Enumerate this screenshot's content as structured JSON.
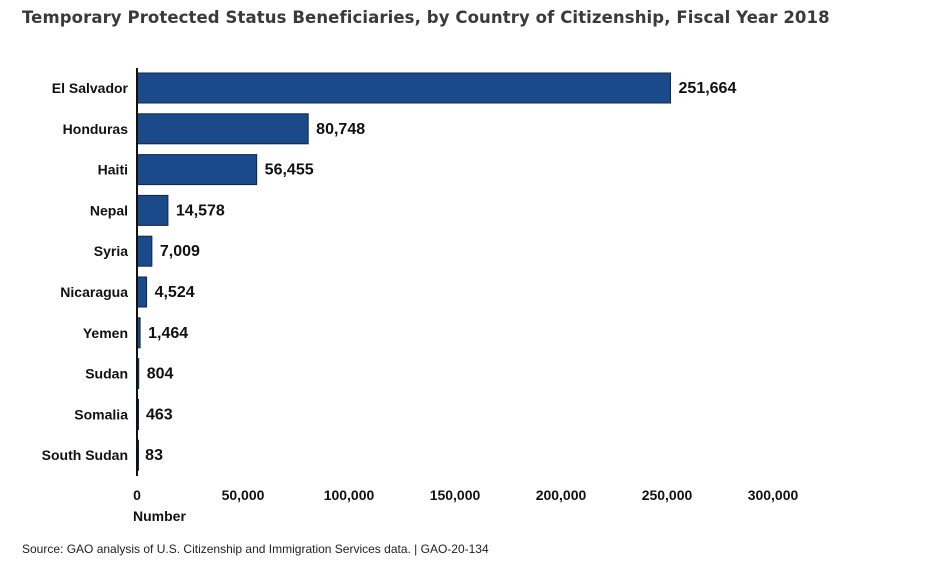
{
  "chart_data": {
    "type": "bar",
    "orientation": "horizontal",
    "title": "Temporary Protected Status Beneficiaries, by Country of Citizenship, Fiscal Year 2018",
    "xlabel": "Number",
    "ylabel": "",
    "categories": [
      "El Salvador",
      "Honduras",
      "Haiti",
      "Nepal",
      "Syria",
      "Nicaragua",
      "Yemen",
      "Sudan",
      "Somalia",
      "South Sudan"
    ],
    "values": [
      251664,
      80748,
      56455,
      14578,
      7009,
      4524,
      1464,
      804,
      463,
      83
    ],
    "data_labels": [
      "251,664",
      "80,748",
      "56,455",
      "14,578",
      "7,009",
      "4,524",
      "1,464",
      "804",
      "463",
      "83"
    ],
    "xlim": [
      0,
      300000
    ],
    "xticks": [
      0,
      50000,
      100000,
      150000,
      200000,
      250000,
      300000
    ],
    "xtick_labels": [
      "0",
      "50,000",
      "100,000",
      "150,000",
      "200,000",
      "250,000",
      "300,000"
    ],
    "grid": false,
    "colors": {
      "bar_fill": "#1b4a8a",
      "bar_stroke": "#0e2748"
    }
  },
  "source": "Source: GAO analysis of U.S. Citizenship and Immigration Services data.   |  GAO-20-134"
}
